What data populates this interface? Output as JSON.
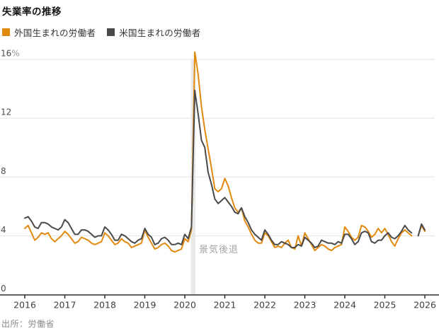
{
  "title": "失業率の推移",
  "legend": [
    {
      "label": "外国生まれの労働者",
      "color": "#E28A10"
    },
    {
      "label": "米国生まれの労働者",
      "color": "#4A4A4A"
    }
  ],
  "source": "出所：労働省",
  "recession": {
    "label": "景気後退"
  },
  "chart_data": {
    "type": "line",
    "frequency": "monthly",
    "x_start": "2016-01",
    "x_end": "2026-01",
    "x_tick_labels": [
      "2016",
      "2017",
      "2018",
      "2019",
      "2020",
      "2021",
      "2022",
      "2023",
      "2024",
      "2025",
      "2026"
    ],
    "y_ticks": [
      0,
      4,
      8,
      12,
      16
    ],
    "y_tick_labels": [
      "0",
      "4",
      "8",
      "12",
      "16%"
    ],
    "y_unit": "%",
    "ylim": [
      0,
      17
    ],
    "grid": "horizontal",
    "legend_position": "top-left",
    "recession_band": {
      "label": "景気後退",
      "start": "2020-02",
      "end": "2020-04"
    },
    "data_gap": "2025-10",
    "colors": {
      "grid": "#e3e3e1",
      "axis": "#2e2e2e",
      "band": "#e9e8e5",
      "tick_text": "#3d3d3d",
      "y_text": "#4d4d4d",
      "y_unit_text": "#999999"
    },
    "series": [
      {
        "name": "外国生まれの労働者",
        "color": "#E28A10",
        "values": [
          4.5,
          4.7,
          4.2,
          3.7,
          3.9,
          4.2,
          4.1,
          4.2,
          3.8,
          3.6,
          3.8,
          4.0,
          4.3,
          4.1,
          3.8,
          3.5,
          3.6,
          3.9,
          3.8,
          3.7,
          3.5,
          3.4,
          3.5,
          3.6,
          4.2,
          4.0,
          3.7,
          3.4,
          3.5,
          3.8,
          3.6,
          3.5,
          3.2,
          3.3,
          3.4,
          3.5,
          4.4,
          3.9,
          3.5,
          3.1,
          3.2,
          3.4,
          3.5,
          3.3,
          3.0,
          2.9,
          3.0,
          3.1,
          3.8,
          3.6,
          4.4,
          16.5,
          15.0,
          12.8,
          11.2,
          9.9,
          8.6,
          7.2,
          7.0,
          7.2,
          7.9,
          7.4,
          6.6,
          5.9,
          5.6,
          5.9,
          5.0,
          4.6,
          4.1,
          3.7,
          3.5,
          3.5,
          4.2,
          4.0,
          3.6,
          3.2,
          3.3,
          3.2,
          3.5,
          3.7,
          3.2,
          3.1,
          4.0,
          3.3,
          4.2,
          3.8,
          3.4,
          3.0,
          3.2,
          3.4,
          3.3,
          3.1,
          3.0,
          3.2,
          3.3,
          3.4,
          4.6,
          4.3,
          3.9,
          3.7,
          3.9,
          4.7,
          4.6,
          4.3,
          3.9,
          4.1,
          4.5,
          4.2,
          4.5,
          4.1,
          3.6,
          3.3,
          3.8,
          4.2,
          4.4,
          4.2,
          4.0,
          null,
          4.0,
          4.7,
          4.3
        ]
      },
      {
        "name": "米国生まれの労働者",
        "color": "#4A4A4A",
        "values": [
          5.2,
          5.3,
          5.0,
          4.6,
          4.5,
          4.9,
          4.9,
          4.8,
          4.6,
          4.5,
          4.4,
          4.6,
          5.1,
          4.9,
          4.5,
          4.1,
          4.1,
          4.4,
          4.4,
          4.3,
          4.1,
          3.9,
          4.0,
          4.0,
          4.6,
          4.4,
          4.1,
          3.7,
          3.7,
          4.1,
          4.0,
          3.8,
          3.6,
          3.5,
          3.7,
          3.8,
          4.5,
          4.1,
          3.9,
          3.4,
          3.5,
          3.8,
          3.9,
          3.7,
          3.4,
          3.4,
          3.5,
          3.4,
          4.1,
          3.8,
          4.6,
          13.9,
          12.3,
          10.5,
          10.0,
          8.3,
          7.5,
          6.5,
          6.2,
          6.4,
          6.6,
          6.3,
          6.0,
          5.6,
          5.5,
          5.9,
          5.3,
          4.9,
          4.4,
          4.1,
          3.9,
          3.7,
          4.4,
          4.1,
          3.7,
          3.4,
          3.4,
          3.6,
          3.5,
          3.4,
          3.2,
          3.2,
          3.4,
          3.3,
          3.9,
          3.7,
          3.5,
          3.2,
          3.3,
          3.7,
          3.6,
          3.5,
          3.5,
          3.4,
          3.6,
          3.5,
          4.1,
          4.1,
          3.8,
          3.4,
          3.6,
          4.2,
          4.3,
          4.2,
          3.6,
          3.5,
          3.7,
          3.7,
          4.0,
          4.2,
          3.9,
          3.8,
          4.0,
          4.3,
          4.7,
          4.4,
          4.2,
          null,
          4.0,
          4.8,
          4.4
        ]
      }
    ]
  }
}
